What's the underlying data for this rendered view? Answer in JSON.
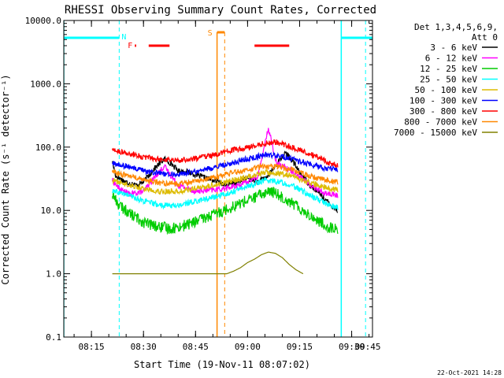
{
  "chart_data": {
    "type": "line",
    "title": "RHESSI Observing Summary Count Rates, Corrected",
    "ylabel": "Corrected Count Rate (s⁻¹ detector⁻¹)",
    "xlabel": "Start Time (19-Nov-11 08:07:02)",
    "yscale": "log",
    "ylim": [
      0.1,
      10000.0
    ],
    "xlim_min": [
      7.03,
      96.0
    ],
    "y_ticks": [
      {
        "v": 10000,
        "label": "10000.0"
      },
      {
        "v": 1000,
        "label": "1000.0"
      },
      {
        "v": 100,
        "label": "100.0"
      },
      {
        "v": 10,
        "label": "10.0"
      },
      {
        "v": 1,
        "label": "1.0"
      },
      {
        "v": 0.1,
        "label": "0.1"
      }
    ],
    "x_ticks": [
      {
        "t": 15,
        "label": "08:15"
      },
      {
        "t": 30,
        "label": "08:30"
      },
      {
        "t": 45,
        "label": "08:45"
      },
      {
        "t": 60,
        "label": "09:00"
      },
      {
        "t": 75,
        "label": "09:15"
      },
      {
        "t": 90,
        "label": "09:30"
      },
      {
        "t": 105,
        "label": "09:45"
      }
    ],
    "legend_header": [
      "Det 1,3,4,5,6,9,",
      "Att 0"
    ],
    "series": [
      {
        "name": "3 - 6 keV",
        "color": "#000000",
        "points": [
          [
            21,
            60
          ],
          [
            22,
            35
          ],
          [
            25,
            28
          ],
          [
            28,
            25
          ],
          [
            30,
            28
          ],
          [
            33,
            45
          ],
          [
            36,
            65
          ],
          [
            38,
            55
          ],
          [
            40,
            42
          ],
          [
            43,
            40
          ],
          [
            46,
            35
          ],
          [
            50,
            30
          ],
          [
            54,
            25
          ],
          [
            57,
            28
          ],
          [
            60,
            32
          ],
          [
            63,
            28
          ],
          [
            66,
            35
          ],
          [
            69,
            60
          ],
          [
            71,
            80
          ],
          [
            73,
            60
          ],
          [
            75,
            40
          ],
          [
            78,
            25
          ],
          [
            81,
            18
          ],
          [
            84,
            12
          ],
          [
            86,
            10
          ]
        ]
      },
      {
        "name": "6 - 12 keV",
        "color": "#ff00ff",
        "points": [
          [
            21,
            30
          ],
          [
            23,
            22
          ],
          [
            26,
            18
          ],
          [
            30,
            20
          ],
          [
            34,
            38
          ],
          [
            36,
            50
          ],
          [
            38,
            35
          ],
          [
            40,
            25
          ],
          [
            45,
            20
          ],
          [
            50,
            21
          ],
          [
            55,
            23
          ],
          [
            60,
            28
          ],
          [
            63,
            35
          ],
          [
            66,
            200
          ],
          [
            67,
            120
          ],
          [
            68,
            60
          ],
          [
            71,
            48
          ],
          [
            75,
            35
          ],
          [
            78,
            25
          ],
          [
            82,
            19
          ],
          [
            86,
            17
          ]
        ]
      },
      {
        "name": "12 - 25 keV",
        "color": "#00cc00",
        "points": [
          [
            21,
            18
          ],
          [
            23,
            12
          ],
          [
            26,
            9
          ],
          [
            30,
            6.5
          ],
          [
            34,
            5.5
          ],
          [
            38,
            5.2
          ],
          [
            42,
            5.8
          ],
          [
            46,
            7
          ],
          [
            50,
            8.5
          ],
          [
            54,
            10.5
          ],
          [
            58,
            13
          ],
          [
            62,
            16
          ],
          [
            66,
            20
          ],
          [
            68,
            19
          ],
          [
            71,
            15
          ],
          [
            74,
            12
          ],
          [
            77,
            9
          ],
          [
            80,
            7
          ],
          [
            83,
            5.5
          ],
          [
            86,
            5
          ]
        ]
      },
      {
        "name": "25 - 50 keV",
        "color": "#00ffff",
        "points": [
          [
            21,
            20
          ],
          [
            25,
            18
          ],
          [
            30,
            14
          ],
          [
            35,
            12
          ],
          [
            40,
            12
          ],
          [
            45,
            14
          ],
          [
            50,
            16
          ],
          [
            55,
            19
          ],
          [
            60,
            24
          ],
          [
            65,
            30
          ],
          [
            68,
            29
          ],
          [
            72,
            26
          ],
          [
            76,
            20
          ],
          [
            80,
            15
          ],
          [
            84,
            12
          ],
          [
            86,
            11
          ]
        ]
      },
      {
        "name": "50 - 100 keV",
        "color": "#ddbb00",
        "points": [
          [
            21,
            30
          ],
          [
            25,
            26
          ],
          [
            30,
            22
          ],
          [
            35,
            20
          ],
          [
            40,
            20
          ],
          [
            45,
            22
          ],
          [
            50,
            25
          ],
          [
            55,
            29
          ],
          [
            60,
            34
          ],
          [
            65,
            40
          ],
          [
            68,
            39
          ],
          [
            72,
            36
          ],
          [
            76,
            30
          ],
          [
            80,
            25
          ],
          [
            84,
            22
          ],
          [
            86,
            21
          ]
        ]
      },
      {
        "name": "100 - 300 keV",
        "color": "#0000ff",
        "points": [
          [
            21,
            55
          ],
          [
            25,
            50
          ],
          [
            30,
            42
          ],
          [
            35,
            38
          ],
          [
            40,
            37
          ],
          [
            45,
            41
          ],
          [
            50,
            47
          ],
          [
            55,
            55
          ],
          [
            60,
            65
          ],
          [
            65,
            75
          ],
          [
            68,
            74
          ],
          [
            72,
            67
          ],
          [
            76,
            57
          ],
          [
            80,
            49
          ],
          [
            84,
            45
          ],
          [
            86,
            44
          ]
        ]
      },
      {
        "name": "300 - 800 keV",
        "color": "#ff0000",
        "points": [
          [
            21,
            90
          ],
          [
            23,
            85
          ],
          [
            27,
            75
          ],
          [
            31,
            68
          ],
          [
            35,
            64
          ],
          [
            40,
            62
          ],
          [
            45,
            66
          ],
          [
            50,
            75
          ],
          [
            55,
            88
          ],
          [
            60,
            100
          ],
          [
            65,
            115
          ],
          [
            68,
            120
          ],
          [
            70,
            112
          ],
          [
            74,
            95
          ],
          [
            78,
            78
          ],
          [
            82,
            62
          ],
          [
            84,
            54
          ],
          [
            86,
            52
          ]
        ]
      },
      {
        "name": "800 - 7000 keV",
        "color": "#ff8800",
        "points": [
          [
            21,
            40
          ],
          [
            25,
            36
          ],
          [
            30,
            30
          ],
          [
            35,
            27
          ],
          [
            40,
            26
          ],
          [
            45,
            29
          ],
          [
            50,
            33
          ],
          [
            55,
            38
          ],
          [
            60,
            44
          ],
          [
            65,
            50
          ],
          [
            68,
            49
          ],
          [
            72,
            45
          ],
          [
            76,
            38
          ],
          [
            80,
            32
          ],
          [
            84,
            29
          ],
          [
            86,
            28
          ]
        ]
      },
      {
        "name": "7000 - 15000 keV",
        "color": "#808000",
        "points": [
          [
            21,
            1.0
          ],
          [
            23,
            1.0
          ],
          [
            49,
            1.0
          ],
          [
            54,
            1.0
          ],
          [
            56,
            1.1
          ],
          [
            58,
            1.25
          ],
          [
            60,
            1.5
          ],
          [
            62,
            1.7
          ],
          [
            64,
            2.0
          ],
          [
            66,
            2.2
          ],
          [
            68,
            2.1
          ],
          [
            70,
            1.8
          ],
          [
            72,
            1.4
          ],
          [
            74,
            1.15
          ],
          [
            76,
            1.0
          ]
        ]
      }
    ],
    "markers": {
      "attenuator_bars": {
        "label": "S",
        "color": "#ff8800"
      },
      "saa_label": "F",
      "night_label": "N",
      "flare_color": "#ff0000",
      "night_color": "#00ffff",
      "night_intervals": [
        [
          7.03,
          23.0
        ],
        [
          87.0,
          96.0
        ]
      ],
      "saa_intervals": [
        [
          27.5,
          27.9
        ],
        [
          31.5,
          37.5
        ],
        [
          62.0,
          72.0
        ]
      ],
      "attenuator_intervals": [
        [
          51.2,
          53.4
        ]
      ],
      "cyan_dashed_lines": [
        23.0,
        94.0
      ],
      "cyan_solid_lines": [
        7.03,
        87.0
      ],
      "orange_solid_line": 51.2,
      "orange_dashed_line": 53.4
    },
    "grid": false
  },
  "footer": {
    "date": "22-Oct-2021 14:28"
  }
}
